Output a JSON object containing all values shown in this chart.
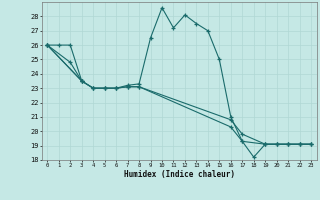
{
  "xlabel": "Humidex (Indice chaleur)",
  "xlim": [
    -0.5,
    23.5
  ],
  "ylim": [
    18,
    29
  ],
  "yticks": [
    18,
    19,
    20,
    21,
    22,
    23,
    24,
    25,
    26,
    27,
    28
  ],
  "xticks": [
    0,
    1,
    2,
    3,
    4,
    5,
    6,
    7,
    8,
    9,
    10,
    11,
    12,
    13,
    14,
    15,
    16,
    17,
    18,
    19,
    20,
    21,
    22,
    23
  ],
  "background_color": "#c5e8e5",
  "grid_color": "#b0d8d4",
  "line_color": "#1a6b6b",
  "line1_x": [
    0,
    1,
    2,
    3,
    4,
    5,
    6,
    7,
    8,
    9,
    10,
    11,
    12,
    13,
    14,
    15,
    16,
    17,
    18,
    19,
    20,
    21,
    22,
    23
  ],
  "line1_y": [
    26.0,
    26.0,
    26.0,
    23.5,
    23.0,
    23.0,
    23.0,
    23.2,
    23.3,
    26.5,
    28.6,
    27.2,
    28.1,
    27.5,
    27.0,
    25.0,
    21.0,
    19.3,
    18.2,
    19.1,
    19.1,
    19.1,
    19.1,
    19.1
  ],
  "line2_x": [
    0,
    2,
    3
  ],
  "line2_y": [
    26.0,
    24.8,
    23.5
  ],
  "line3_x": [
    0,
    3,
    4,
    5,
    6,
    7,
    8,
    16,
    17,
    19,
    20,
    21,
    22,
    23
  ],
  "line3_y": [
    26.0,
    23.5,
    23.0,
    23.0,
    23.0,
    23.1,
    23.1,
    20.3,
    19.3,
    19.1,
    19.1,
    19.1,
    19.1,
    19.1
  ],
  "line4_x": [
    0,
    3,
    4,
    5,
    6,
    7,
    8,
    16,
    17,
    19,
    20,
    21,
    22,
    23
  ],
  "line4_y": [
    26.0,
    23.5,
    23.0,
    23.0,
    23.0,
    23.1,
    23.1,
    20.8,
    19.8,
    19.1,
    19.1,
    19.1,
    19.1,
    19.1
  ]
}
